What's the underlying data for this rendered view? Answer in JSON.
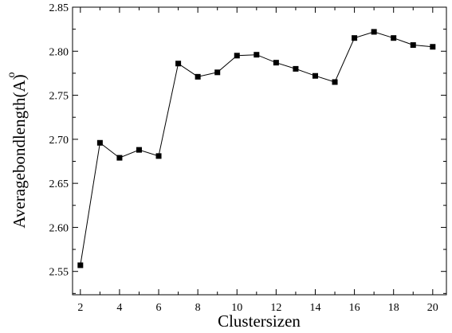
{
  "chart_data": {
    "type": "line",
    "title": "",
    "xlabel": "Clustersizen",
    "ylabel": "Averagebondlength(A)",
    "ylabel_accent": "o",
    "xlim": [
      1.6,
      20.7
    ],
    "ylim": [
      2.5235,
      2.85
    ],
    "x_ticks": [
      2,
      4,
      6,
      8,
      10,
      12,
      14,
      16,
      18,
      20
    ],
    "x_tick_labels": [
      "2",
      "4",
      "6",
      "8",
      "10",
      "12",
      "14",
      "16",
      "18",
      "20"
    ],
    "x_minor_ticks": [
      3,
      5,
      7,
      9,
      11,
      13,
      15,
      17,
      19
    ],
    "y_ticks": [
      2.55,
      2.6,
      2.65,
      2.7,
      2.75,
      2.8,
      2.85
    ],
    "y_tick_labels": [
      "2.55",
      "2.60",
      "2.65",
      "2.70",
      "2.75",
      "2.80",
      "2.85"
    ],
    "y_minor_ticks": [
      2.525,
      2.575,
      2.625,
      2.675,
      2.725,
      2.775,
      2.825
    ],
    "grid": false,
    "legend": "none",
    "marker": "square",
    "color": "#000000",
    "x": [
      2,
      3,
      4,
      5,
      6,
      7,
      8,
      9,
      10,
      11,
      12,
      13,
      14,
      15,
      16,
      17,
      18,
      19,
      20
    ],
    "y": [
      2.557,
      2.696,
      2.679,
      2.688,
      2.681,
      2.786,
      2.771,
      2.776,
      2.795,
      2.796,
      2.787,
      2.78,
      2.772,
      2.765,
      2.815,
      2.822,
      2.815,
      2.807,
      2.805
    ]
  }
}
